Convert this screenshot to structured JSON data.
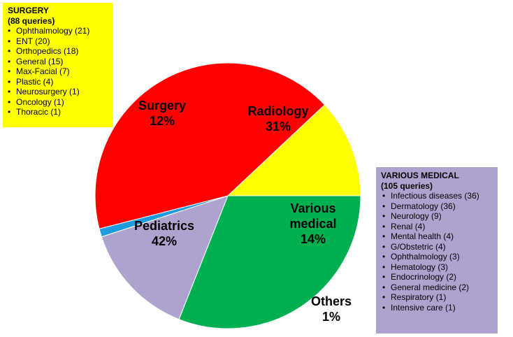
{
  "chart_data": {
    "type": "pie",
    "slices": [
      {
        "label": [
          "Radiology",
          "31%"
        ],
        "value": 31,
        "color": "#00b050"
      },
      {
        "label": [
          "Various",
          "medical",
          "14%"
        ],
        "value": 14,
        "color": "#b0a2cf"
      },
      {
        "label": [
          "Others",
          "1%"
        ],
        "value": 1,
        "color": "#1f9bde"
      },
      {
        "label": [
          "Pediatrics",
          "42%"
        ],
        "value": 42,
        "color": "#ff0000"
      },
      {
        "label": [
          "Surgery",
          "12%"
        ],
        "value": 12,
        "color": "#ffff00"
      }
    ]
  },
  "surgery_box": {
    "title": "SURGERY",
    "subtitle": "(88 queries)",
    "items": [
      "Ophthalmology (21)",
      "ENT (20)",
      "Orthopedics (18)",
      "General (15)",
      "Max-Facial (7)",
      "Plastic (4)",
      "Neurosurgery (1)",
      "Oncology (1)",
      "Thoracic (1)"
    ],
    "color": "#ffff00"
  },
  "medical_box": {
    "title": "VARIOUS MEDICAL",
    "subtitle": "(105 queries)",
    "items": [
      "Infectious diseases (36)",
      "Dermatology (36)",
      "Neurology (9)",
      "Renal (4)",
      "Mental health (4)",
      "G/Obstetric (4)",
      "Ophthalmology (3)",
      "Hematology (3)",
      "Endocrinology (2)",
      "General medicine (2)",
      "Respiratory (1)",
      "Intensive care (1)"
    ],
    "color": "#b0a2cf"
  }
}
